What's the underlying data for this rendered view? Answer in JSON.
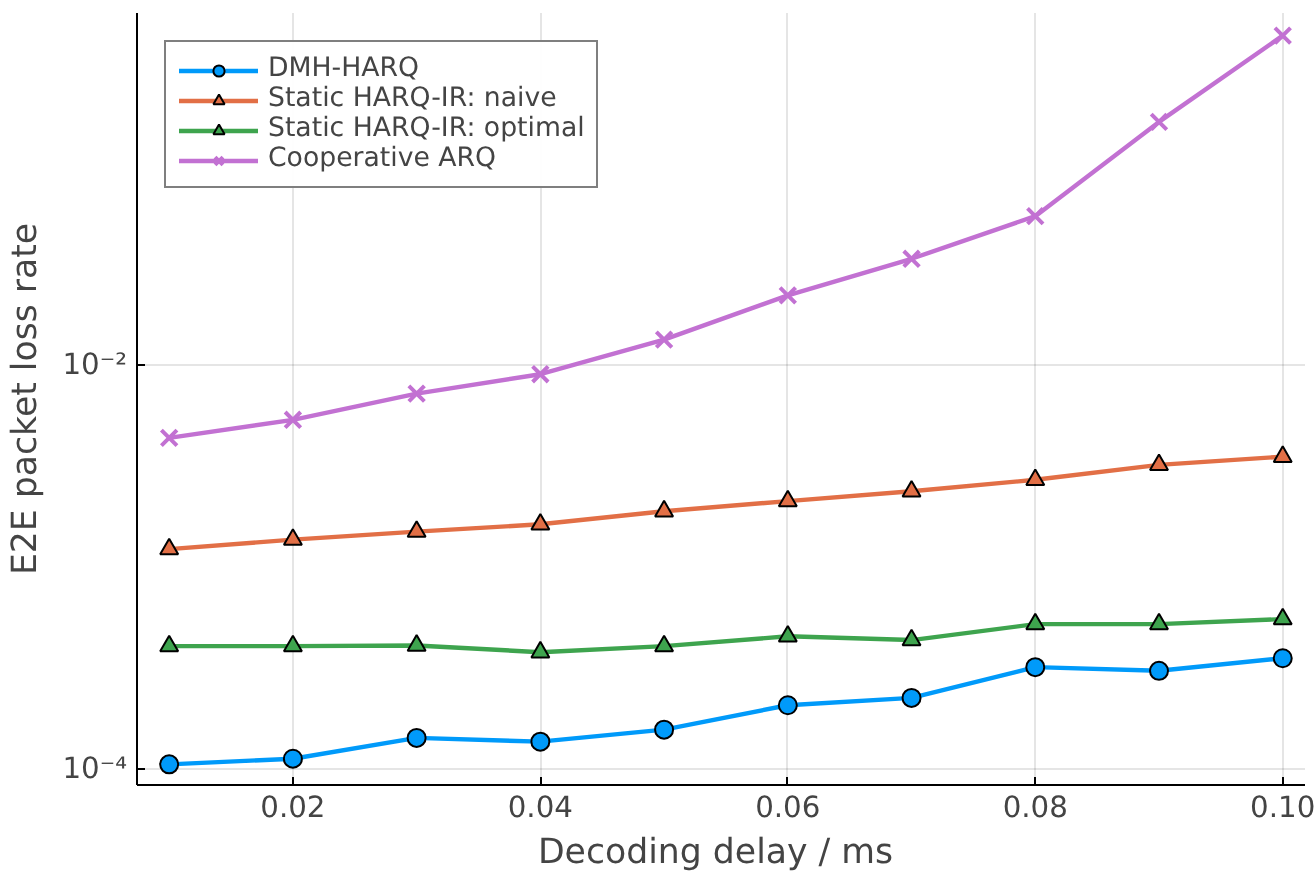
{
  "chart_data": {
    "type": "line",
    "xlabel": "Decoding  delay / ms",
    "ylabel": "E2E packet loss rate",
    "log": "y",
    "grid": true,
    "legend": "top left",
    "line_style": "solid",
    "x": [
      0.01,
      0.02,
      0.03,
      0.04,
      0.05,
      0.06,
      0.07,
      0.08,
      0.09,
      0.1
    ],
    "xlim": [
      0.0074,
      0.1018
    ],
    "xticks": [
      0.02,
      0.04,
      0.06,
      0.08,
      {
        "value": 0.1,
        "label": "0.10"
      }
    ],
    "ylim": [
      8.3e-05,
      0.55
    ],
    "yticks": [
      {
        "value": 0.0001,
        "label": "10⁻⁴"
      },
      {
        "value": 0.01,
        "label": "10⁻²"
      }
    ],
    "series": [
      {
        "name": "DMH-HARQ",
        "color": "#009afa",
        "marker": "circle",
        "values": [
          0.000105,
          0.000112,
          0.000142,
          0.000136,
          0.000156,
          0.000206,
          0.000224,
          0.000318,
          0.000305,
          0.000352
        ]
      },
      {
        "name": "Static HARQ-IR: naive",
        "color": "#e26f46",
        "marker": "triangle",
        "values": [
          0.00122,
          0.00136,
          0.00149,
          0.00162,
          0.00188,
          0.00211,
          0.00236,
          0.00269,
          0.00319,
          0.0035
        ]
      },
      {
        "name": "Static HARQ-IR: optimal",
        "color": "#3ea44e",
        "marker": "triangle",
        "values": [
          0.000404,
          0.000404,
          0.000407,
          0.000377,
          0.000404,
          0.000452,
          0.000433,
          0.000519,
          0.000519,
          0.00055
        ]
      },
      {
        "name": "Cooperative ARQ",
        "color": "#c271d2",
        "marker": "x",
        "values": [
          0.00434,
          0.00533,
          0.00718,
          0.00896,
          0.0133,
          0.022,
          0.0334,
          0.0543,
          0.159,
          0.425
        ]
      }
    ]
  }
}
